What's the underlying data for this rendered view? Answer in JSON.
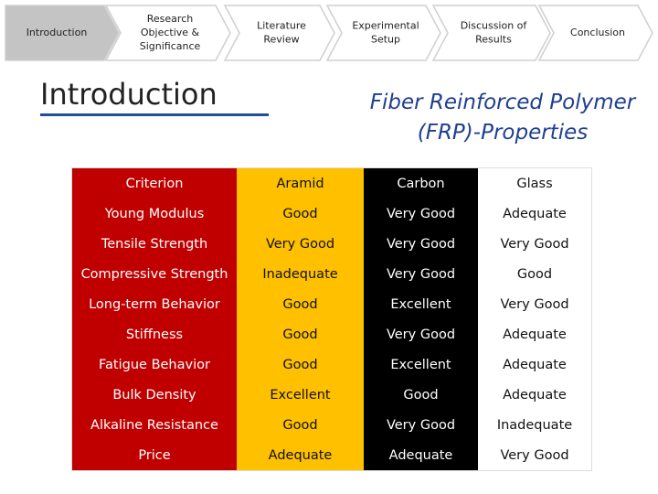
{
  "nav": {
    "steps": [
      {
        "lines": [
          "Introduction"
        ]
      },
      {
        "lines": [
          "Research",
          "Objective &",
          "Significance"
        ]
      },
      {
        "lines": [
          "Literature",
          "Review"
        ]
      },
      {
        "lines": [
          "Experimental",
          "Setup"
        ]
      },
      {
        "lines": [
          "Discussion of",
          "Results"
        ]
      },
      {
        "lines": [
          "Conclusion"
        ]
      }
    ]
  },
  "section_heading": "Introduction",
  "title": {
    "lines": [
      "Fiber Reinforced Polymer",
      "(FRP)-Properties"
    ]
  },
  "table": {
    "header": [
      "Criterion",
      "Aramid",
      "Carbon",
      "Glass"
    ],
    "rows": [
      [
        "Young Modulus",
        "Good",
        "Very Good",
        "Adequate"
      ],
      [
        "Tensile Strength",
        "Very Good",
        "Very Good",
        "Very Good"
      ],
      [
        "Compressive Strength",
        "Inadequate",
        "Very Good",
        "Good"
      ],
      [
        "Long-term Behavior",
        "Good",
        "Excellent",
        "Very Good"
      ],
      [
        "Stiffness",
        "Good",
        "Very Good",
        "Adequate"
      ],
      [
        "Fatigue Behavior",
        "Good",
        "Excellent",
        "Adequate"
      ],
      [
        "Bulk Density",
        "Excellent",
        "Good",
        "Adequate"
      ],
      [
        "Alkaline Resistance",
        "Good",
        "Very Good",
        "Inadequate"
      ],
      [
        "Price",
        "Adequate",
        "Adequate",
        "Very Good"
      ]
    ]
  }
}
